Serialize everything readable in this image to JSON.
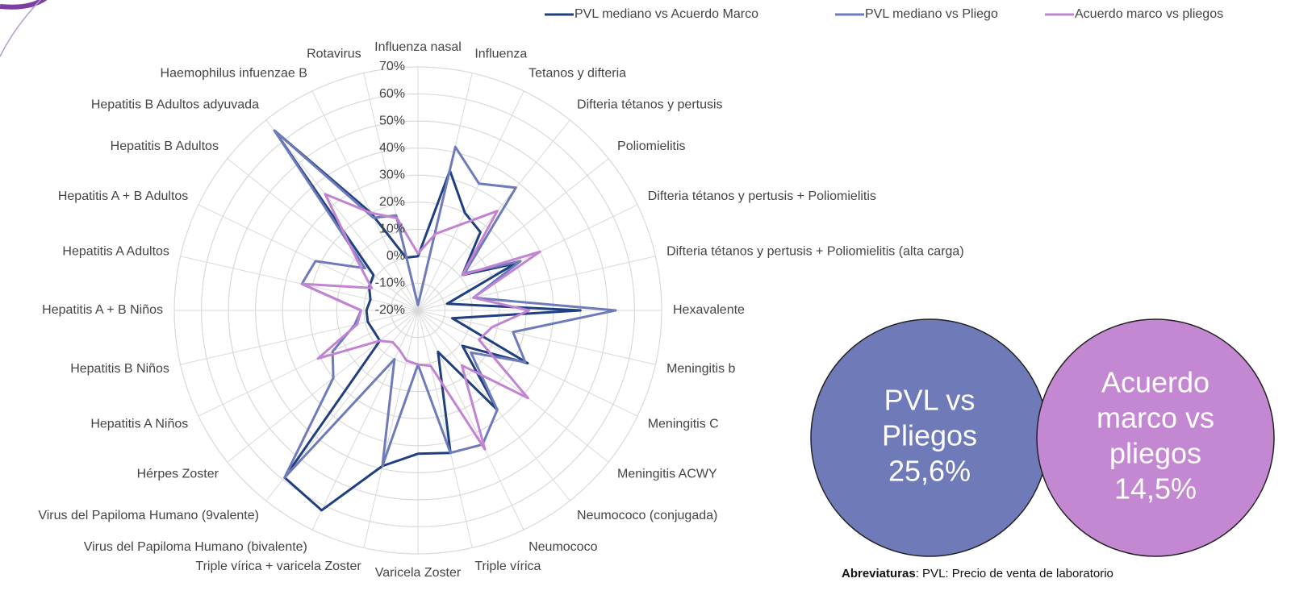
{
  "chart_data": {
    "type": "radar",
    "categories": [
      "Influenza nasal",
      "Influenza",
      "Tetanos y difteria",
      "Difteria tétanos y pertusis",
      "Poliomielitis",
      "Difteria tétanos y pertusis + Poliomielitis",
      "Difteria tétanos y pertusis + Poliomielitis (alta carga)",
      "Hexavalente",
      "Meningitis b",
      "Meningitis C",
      "Meningitis ACWY",
      "Neumococo (conjugada)",
      "Neumococo",
      "Triple vírica",
      "Varicela Zoster",
      "Triple vírica + varicela Zoster",
      "Virus del Papiloma Humano (bivalente)",
      "Virus del Papiloma Humano (9valente)",
      "Hérpes Zoster",
      "Hepatitis A Niños",
      "Hepatitis B Niños",
      "Hepatitis A + B Niños",
      "Hepatitis A Adultos",
      "Hepatitis A + B Adultos",
      "Hepatitis B Adultos",
      "Hepatitis B Adultos adyuvada",
      "Haemophilus infuenzae B",
      "Rotavirus"
    ],
    "series": [
      {
        "name": "PVL mediano vs Acuerdo Marco",
        "color": "#1f3f80",
        "values": [
          0,
          33,
          20,
          17,
          1,
          20,
          -9,
          40,
          -7,
          25,
          1,
          27,
          -3,
          34,
          33,
          39,
          62,
          59,
          -2,
          -2,
          -1,
          -1,
          -2,
          0,
          1,
          65,
          20,
          0
        ]
      },
      {
        "name": "PVL mediano vs Pliego",
        "color": "#6f7bb8",
        "values": [
          -18,
          42,
          32,
          38,
          2,
          22,
          1,
          53,
          16,
          24,
          5,
          27,
          35,
          34,
          0,
          39,
          0,
          59,
          20,
          15,
          4,
          1,
          24,
          22,
          5,
          65,
          18,
          16
        ]
      },
      {
        "name": "Acuerdo marco vs pliegos",
        "color": "#c283d2",
        "values": [
          1,
          9,
          15,
          27,
          1,
          30,
          1,
          21,
          8,
          5,
          32,
          6,
          37,
          1,
          0,
          -1,
          -4,
          -5,
          -2,
          21,
          3,
          1,
          24,
          -1,
          8,
          35,
          20,
          15
        ]
      }
    ],
    "ylim": [
      -20,
      70
    ],
    "yticks": [
      {
        "value": -20,
        "label": "-20%"
      },
      {
        "value": -10,
        "label": "-10%"
      },
      {
        "value": 0,
        "label": "0%"
      },
      {
        "value": 10,
        "label": "10%"
      },
      {
        "value": 20,
        "label": "20%"
      },
      {
        "value": 30,
        "label": "30%"
      },
      {
        "value": 40,
        "label": "40%"
      },
      {
        "value": 50,
        "label": "50%"
      },
      {
        "value": 60,
        "label": "60%"
      },
      {
        "value": 70,
        "label": "70%"
      }
    ],
    "grid": true
  },
  "summary": [
    {
      "lines": [
        "PVL vs",
        "Pliegos",
        "25,6%"
      ],
      "color": "#6f7bb8"
    },
    {
      "lines": [
        "Acuerdo",
        "marco vs",
        "pliegos",
        "14,5%"
      ],
      "color": "#c487d1"
    }
  ],
  "footnote": {
    "label": "Abreviaturas",
    "text": ": PVL: Precio de venta de laboratorio"
  }
}
